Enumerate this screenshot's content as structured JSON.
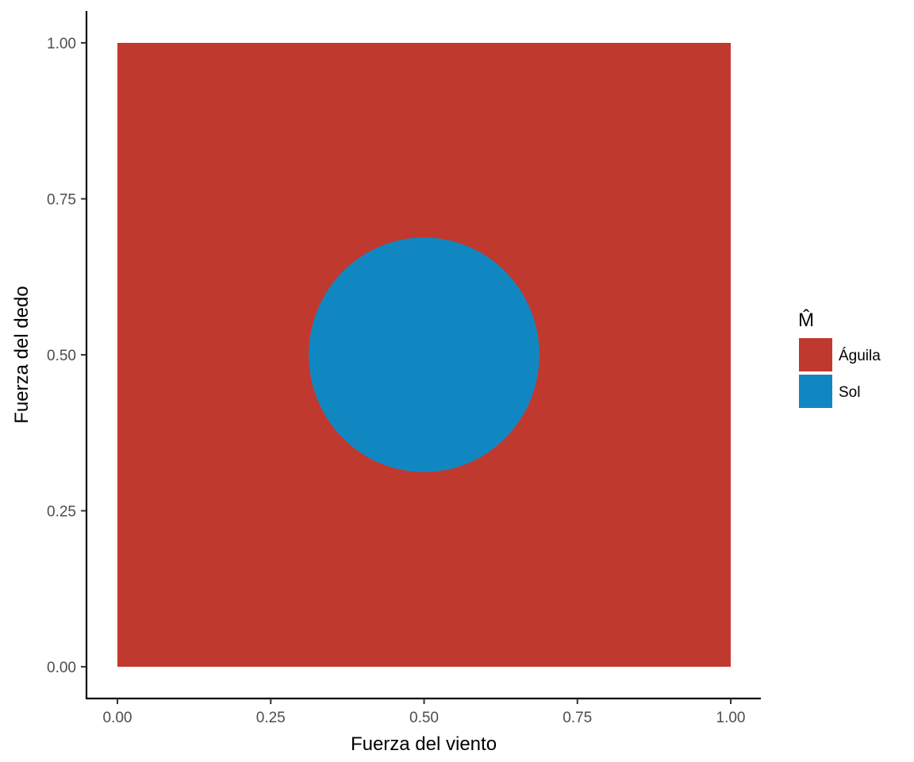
{
  "chart_data": {
    "type": "heatmap",
    "xlabel": "Fuerza del viento",
    "ylabel": "Fuerza del dedo",
    "xlim": [
      0,
      1
    ],
    "ylim": [
      0,
      1
    ],
    "x_ticks": [
      "0.00",
      "0.25",
      "0.50",
      "0.75",
      "1.00"
    ],
    "y_ticks": [
      "0.00",
      "0.25",
      "0.50",
      "0.75",
      "1.00"
    ],
    "regions": [
      {
        "name": "Águila",
        "shape": "square",
        "x": [
          0,
          1
        ],
        "y": [
          0,
          1
        ],
        "color": "#C0392E"
      },
      {
        "name": "Sol",
        "shape": "circle",
        "center": [
          0.5,
          0.5
        ],
        "radius": 0.188,
        "color": "#1187C2"
      }
    ],
    "legend": {
      "title": "M̂",
      "placement": "right",
      "entries": [
        {
          "label": "Águila",
          "color": "#C0392E"
        },
        {
          "label": "Sol",
          "color": "#1187C2"
        }
      ]
    },
    "grid": false
  }
}
